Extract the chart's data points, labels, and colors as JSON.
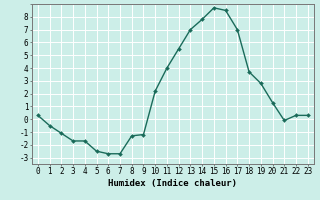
{
  "x": [
    0,
    1,
    2,
    3,
    4,
    5,
    6,
    7,
    8,
    9,
    10,
    11,
    12,
    13,
    14,
    15,
    16,
    17,
    18,
    19,
    20,
    21,
    22,
    23
  ],
  "y": [
    0.3,
    -0.5,
    -1.1,
    -1.7,
    -1.7,
    -2.5,
    -2.7,
    -2.7,
    -1.3,
    -1.2,
    2.2,
    4.0,
    5.5,
    7.0,
    7.8,
    8.7,
    8.5,
    7.0,
    3.7,
    2.8,
    1.3,
    -0.1,
    0.3,
    0.3
  ],
  "line_color": "#1a6b5a",
  "marker": "D",
  "marker_size": 2.0,
  "bg_color": "#cceee8",
  "grid_major_color": "#ffffff",
  "grid_minor_color": "#f0b0b0",
  "xlabel": "Humidex (Indice chaleur)",
  "xlim": [
    -0.5,
    23.5
  ],
  "ylim": [
    -3.5,
    9.0
  ],
  "yticks": [
    -3,
    -2,
    -1,
    0,
    1,
    2,
    3,
    4,
    5,
    6,
    7,
    8
  ],
  "xticks": [
    0,
    1,
    2,
    3,
    4,
    5,
    6,
    7,
    8,
    9,
    10,
    11,
    12,
    13,
    14,
    15,
    16,
    17,
    18,
    19,
    20,
    21,
    22,
    23
  ],
  "xtick_labels": [
    "0",
    "1",
    "2",
    "3",
    "4",
    "5",
    "6",
    "7",
    "8",
    "9",
    "10",
    "11",
    "12",
    "13",
    "14",
    "15",
    "16",
    "17",
    "18",
    "19",
    "20",
    "21",
    "22",
    "23"
  ],
  "tick_fontsize": 5.5,
  "xlabel_fontsize": 6.5,
  "line_width": 1.0
}
